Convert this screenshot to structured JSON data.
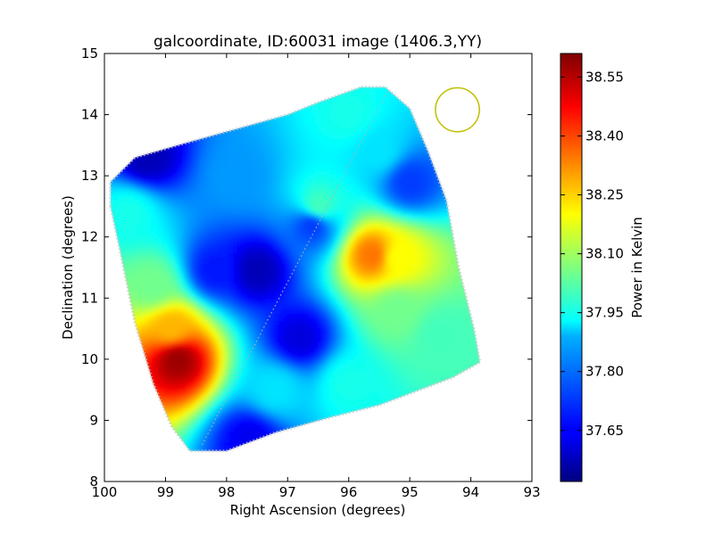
{
  "chart_data": {
    "type": "heatmap",
    "title": "galcoordinate, ID:60031 image (1406.3,YY)",
    "xlabel": "Right Ascension (degrees)",
    "ylabel": "Declination (degrees)",
    "xlim": [
      100,
      93
    ],
    "ylim": [
      8,
      15
    ],
    "x_ticks": [
      100,
      99,
      98,
      97,
      96,
      95,
      94,
      93
    ],
    "y_ticks": [
      8,
      9,
      10,
      11,
      12,
      13,
      14,
      15
    ],
    "colorbar": {
      "label": "Power in Kelvin",
      "range": [
        37.52,
        38.61
      ],
      "ticks": [
        "37.65",
        "37.80",
        "37.95",
        "38.10",
        "38.25",
        "38.40",
        "38.55"
      ],
      "colormap": "jet"
    },
    "field_outline": [
      [
        99.9,
        12.5
      ],
      [
        99.9,
        12.9
      ],
      [
        99.5,
        13.3
      ],
      [
        98.8,
        13.5
      ],
      [
        97.9,
        13.75
      ],
      [
        97.0,
        14.0
      ],
      [
        96.5,
        14.2
      ],
      [
        95.8,
        14.45
      ],
      [
        95.4,
        14.45
      ],
      [
        95.0,
        14.1
      ],
      [
        94.7,
        13.4
      ],
      [
        94.4,
        12.6
      ],
      [
        94.2,
        11.5
      ],
      [
        93.95,
        10.5
      ],
      [
        93.85,
        9.95
      ],
      [
        94.3,
        9.7
      ],
      [
        95.5,
        9.25
      ],
      [
        96.3,
        9.05
      ],
      [
        97.2,
        8.8
      ],
      [
        98.0,
        8.5
      ],
      [
        98.6,
        8.5
      ],
      [
        98.9,
        8.9
      ],
      [
        99.2,
        9.6
      ],
      [
        99.5,
        10.6
      ],
      [
        99.75,
        11.8
      ]
    ],
    "features": [
      {
        "ra": 98.8,
        "dec": 10.0,
        "value": 38.58
      },
      {
        "ra": 98.9,
        "dec": 10.5,
        "value": 38.28
      },
      {
        "ra": 99.2,
        "dec": 11.2,
        "value": 38.05
      },
      {
        "ra": 95.6,
        "dec": 11.7,
        "value": 38.35
      },
      {
        "ra": 95.2,
        "dec": 11.65,
        "value": 38.2
      },
      {
        "ra": 97.5,
        "dec": 11.45,
        "value": 37.58
      },
      {
        "ra": 98.2,
        "dec": 11.45,
        "value": 37.68
      },
      {
        "ra": 96.8,
        "dec": 10.35,
        "value": 37.62
      },
      {
        "ra": 96.6,
        "dec": 12.2,
        "value": 37.72
      },
      {
        "ra": 99.3,
        "dec": 13.3,
        "value": 37.58
      },
      {
        "ra": 97.6,
        "dec": 8.7,
        "value": 37.64
      },
      {
        "ra": 95.0,
        "dec": 12.9,
        "value": 37.72
      },
      {
        "ra": 97.8,
        "dec": 13.0,
        "value": 37.82
      },
      {
        "ra": 95.5,
        "dec": 13.4,
        "value": 37.9
      },
      {
        "ra": 96.0,
        "dec": 14.0,
        "value": 37.95
      },
      {
        "ra": 96.5,
        "dec": 12.5,
        "value": 38.0
      },
      {
        "ra": 95.2,
        "dec": 10.8,
        "value": 38.05
      },
      {
        "ra": 94.5,
        "dec": 10.4,
        "value": 38.0
      },
      {
        "ra": 96.0,
        "dec": 9.6,
        "value": 37.95
      },
      {
        "ra": 99.6,
        "dec": 12.4,
        "value": 37.95
      },
      {
        "ra": 97.2,
        "dec": 9.5,
        "value": 37.9
      }
    ],
    "diagonal_line": [
      [
        98.4,
        8.6
      ],
      [
        95.35,
        14.4
      ]
    ],
    "beam_circle": {
      "ra": 94.22,
      "dec": 14.08,
      "radius_deg": 0.36,
      "color": "#bfbf00"
    }
  }
}
